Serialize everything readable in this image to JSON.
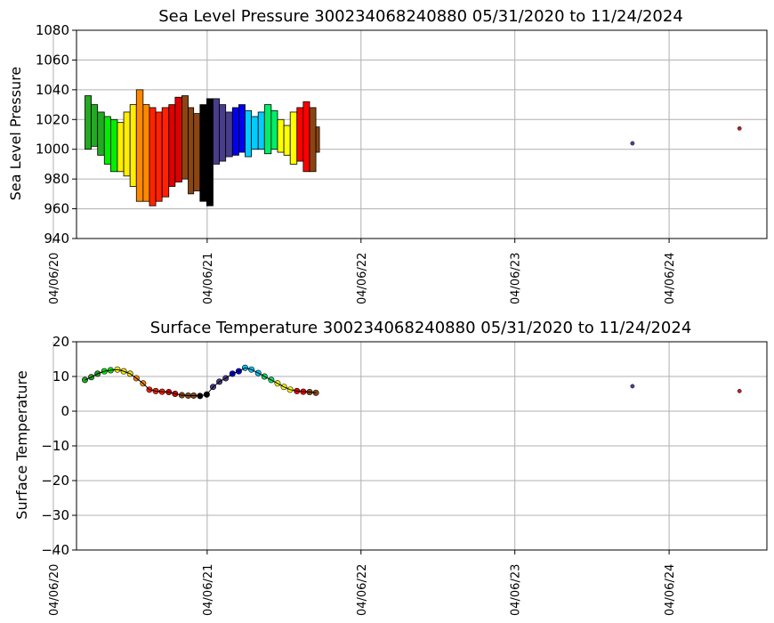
{
  "chart_data": [
    {
      "type": "scatter",
      "title": "Sea Level Pressure 300234068240880  05/31/2020 to 11/24/2024",
      "xlabel": "",
      "ylabel": "Sea Level Pressure",
      "ylim": [
        940,
        1080
      ],
      "yticks": [
        "940",
        "960",
        "980",
        "1000",
        "1020",
        "1040",
        "1060",
        "1080"
      ],
      "xlim": [
        "2020-05-31",
        "2024-11-24"
      ],
      "xticks": [
        "04/06/20",
        "04/06/21",
        "04/06/22",
        "04/06/23",
        "04/06/24"
      ],
      "grid": true,
      "color_scale": [
        "#22aa22",
        "#00ee00",
        "#ffee00",
        "#ff8800",
        "#ff2200",
        "#dd0000",
        "#8b4513",
        "#000000",
        "#483d8b",
        "#0000ee",
        "#00ccff",
        "#00ee66",
        "#ffff00",
        "#ff0000",
        "#8b4513"
      ],
      "series": [
        {
          "x": [
            "2020-06-20",
            "2020-07-05",
            "2020-07-20",
            "2020-08-05",
            "2020-08-20",
            "2020-09-05",
            "2020-09-20",
            "2020-10-05",
            "2020-10-20",
            "2020-11-05",
            "2020-11-20",
            "2020-12-05",
            "2020-12-20",
            "2021-01-05",
            "2021-01-20",
            "2021-02-05",
            "2021-02-20",
            "2021-03-05",
            "2021-03-20",
            "2021-04-05",
            "2021-04-20",
            "2021-05-05",
            "2021-05-20",
            "2021-06-05",
            "2021-06-20",
            "2021-07-05",
            "2021-07-20",
            "2021-08-05",
            "2021-08-20",
            "2021-09-05",
            "2021-09-20",
            "2021-10-05",
            "2021-10-20",
            "2021-11-05",
            "2021-11-20",
            "2021-12-05",
            "2021-12-20"
          ],
          "y_min": [
            1000,
            1002,
            996,
            990,
            985,
            985,
            982,
            975,
            965,
            965,
            962,
            965,
            968,
            975,
            978,
            980,
            970,
            972,
            965,
            962,
            990,
            992,
            995,
            996,
            998,
            995,
            1000,
            1000,
            997,
            1000,
            998,
            996,
            990,
            992,
            985,
            985,
            998
          ],
          "y_max": [
            1036,
            1030,
            1025,
            1022,
            1020,
            1018,
            1025,
            1030,
            1040,
            1030,
            1028,
            1025,
            1028,
            1030,
            1035,
            1036,
            1028,
            1024,
            1030,
            1034,
            1034,
            1030,
            1025,
            1028,
            1030,
            1026,
            1022,
            1025,
            1030,
            1026,
            1020,
            1016,
            1025,
            1028,
            1032,
            1028,
            1015
          ]
        },
        {
          "x": [
            "2024-01-10",
            "2024-09-20"
          ],
          "y": [
            1004,
            1014
          ],
          "colors": [
            "#483d8b",
            "#b22222"
          ]
        }
      ]
    },
    {
      "type": "scatter",
      "title": "Surface Temperature 300234068240880  05/31/2020 to 11/24/2024",
      "xlabel": "",
      "ylabel": "Surface Temperature",
      "ylim": [
        -40,
        20
      ],
      "yticks": [
        "−40",
        "−30",
        "−20",
        "−10",
        "0",
        "10",
        "20"
      ],
      "xlim": [
        "2020-05-31",
        "2024-11-24"
      ],
      "xticks": [
        "04/06/20",
        "04/06/21",
        "04/06/22",
        "04/06/23",
        "04/06/24"
      ],
      "grid": true,
      "series": [
        {
          "x": [
            "2020-06-20",
            "2020-07-05",
            "2020-07-20",
            "2020-08-05",
            "2020-08-20",
            "2020-09-05",
            "2020-09-20",
            "2020-10-05",
            "2020-10-20",
            "2020-11-05",
            "2020-11-20",
            "2020-12-05",
            "2020-12-20",
            "2021-01-05",
            "2021-01-20",
            "2021-02-05",
            "2021-02-20",
            "2021-03-05",
            "2021-03-20",
            "2021-04-05",
            "2021-04-20",
            "2021-05-05",
            "2021-05-20",
            "2021-06-05",
            "2021-06-20",
            "2021-07-05",
            "2021-07-20",
            "2021-08-05",
            "2021-08-20",
            "2021-09-05",
            "2021-09-20",
            "2021-10-05",
            "2021-10-20",
            "2021-11-05",
            "2021-11-20",
            "2021-12-05",
            "2021-12-20"
          ],
          "y": [
            9.0,
            9.8,
            10.8,
            11.5,
            11.8,
            12.0,
            11.5,
            10.8,
            9.5,
            8.0,
            6.2,
            5.8,
            5.6,
            5.5,
            5.0,
            4.6,
            4.5,
            4.5,
            4.4,
            4.8,
            7.0,
            8.5,
            9.5,
            10.8,
            11.5,
            12.5,
            12.0,
            11.0,
            10.0,
            9.0,
            8.0,
            7.0,
            6.2,
            5.8,
            5.6,
            5.5,
            5.3
          ]
        },
        {
          "x": [
            "2024-01-10",
            "2024-09-20"
          ],
          "y": [
            7.2,
            5.8
          ],
          "colors": [
            "#483d8b",
            "#b22222"
          ]
        }
      ]
    }
  ]
}
